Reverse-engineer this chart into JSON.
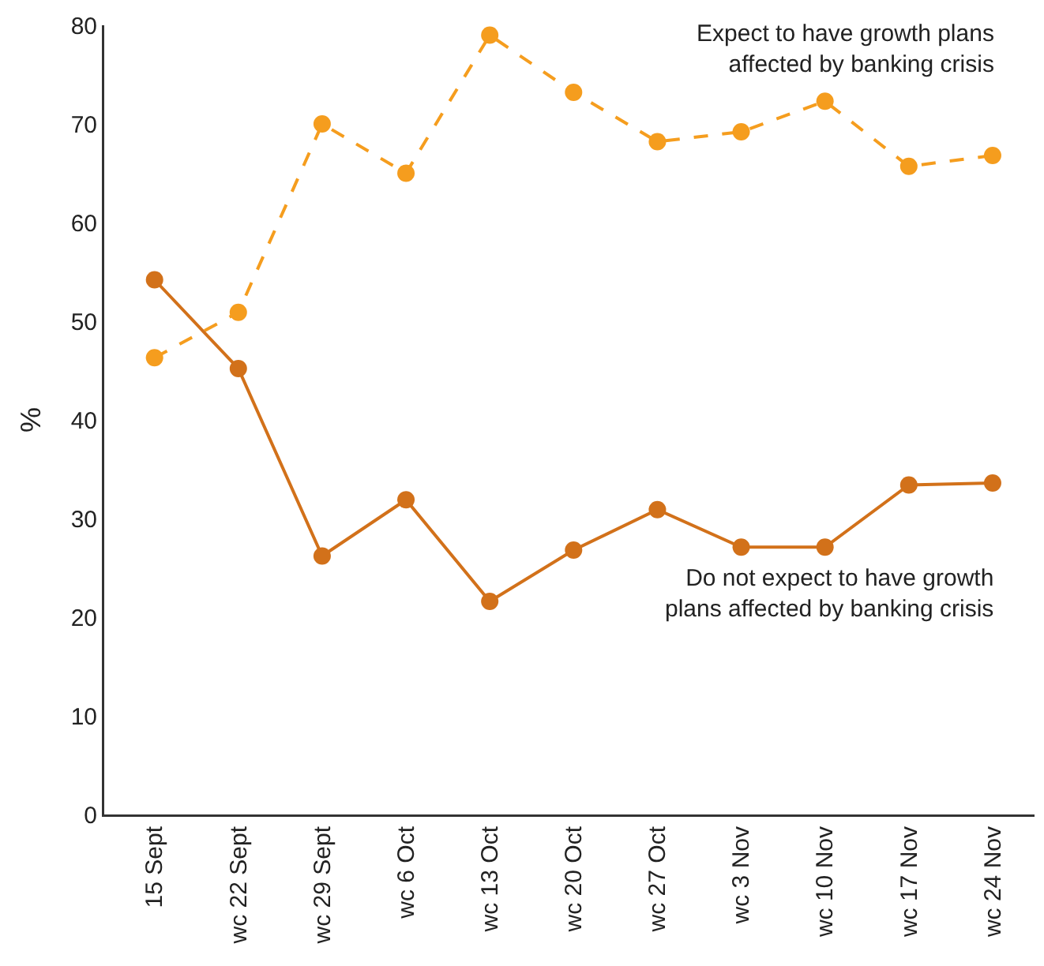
{
  "chart_data": {
    "type": "line",
    "ylabel": "%",
    "categories": [
      "15 Sept",
      "wc 22 Sept",
      "wc 29 Sept",
      "wc 6 Oct",
      "wc 13 Oct",
      "wc 20 Oct",
      "wc 27 Oct",
      "wc 3 Nov",
      "wc 10 Nov",
      "wc 17 Nov",
      "wc 24 Nov"
    ],
    "series": [
      {
        "name": "Expect to have growth plans\naffected by banking crisis",
        "color": "#f59d1e",
        "line_style": "dashed",
        "values": [
          46.3,
          50.9,
          70.0,
          65.0,
          79.0,
          73.2,
          68.2,
          69.2,
          72.3,
          65.7,
          66.8
        ]
      },
      {
        "name": "Do not expect to have growth\nplans affected by banking crisis",
        "color": "#d2711a",
        "line_style": "solid",
        "values": [
          54.2,
          45.2,
          26.2,
          31.9,
          21.6,
          26.8,
          30.9,
          27.1,
          27.1,
          33.4,
          33.6
        ]
      }
    ],
    "ylim": [
      0,
      80
    ],
    "yticks": [
      0,
      10,
      20,
      30,
      40,
      50,
      60,
      70,
      80
    ],
    "grid": false,
    "legend": false,
    "marker": "circle"
  }
}
